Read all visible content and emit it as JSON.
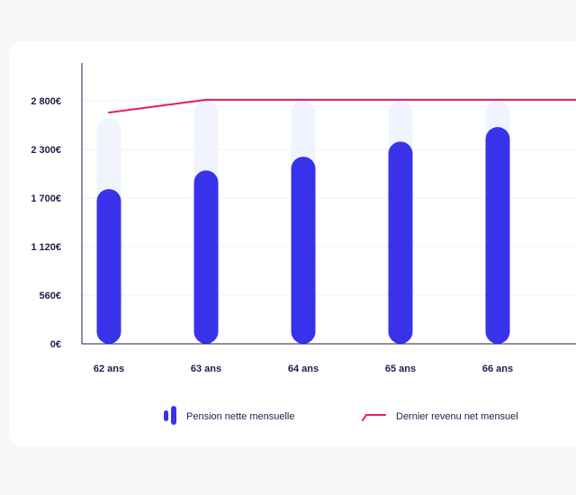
{
  "chart_data": {
    "type": "bar",
    "categories": [
      "62 ans",
      "63 ans",
      "64 ans",
      "65 ans",
      "66 ans"
    ],
    "series": [
      {
        "name": "Pension nette mensuelle",
        "type": "bar",
        "values": [
          1810,
          2040,
          2210,
          2380,
          2530
        ],
        "color": "#3833eb"
      },
      {
        "name": "Dernier revenu net mensuel",
        "type": "line",
        "values": [
          2680,
          2810,
          2810,
          2810,
          2810
        ],
        "color": "#e8195f"
      }
    ],
    "bar_background_values": [
      2620,
      2800,
      2800,
      2800,
      2800
    ],
    "bar_background_color": "#f1f4fe",
    "y_ticks": [
      {
        "value": 0,
        "label": "0€"
      },
      {
        "value": 560,
        "label": "560€"
      },
      {
        "value": 1120,
        "label": "1 120€"
      },
      {
        "value": 1700,
        "label": "1 700€"
      },
      {
        "value": 2300,
        "label": "2 300€"
      },
      {
        "value": 2800,
        "label": "2 800€"
      }
    ],
    "title": "",
    "xlabel": "",
    "ylabel": "",
    "grid": true,
    "legend_position": "bottom"
  },
  "legend": {
    "bar_label": "Pension nette mensuelle",
    "line_label": "Dernier revenu net mensuel"
  }
}
